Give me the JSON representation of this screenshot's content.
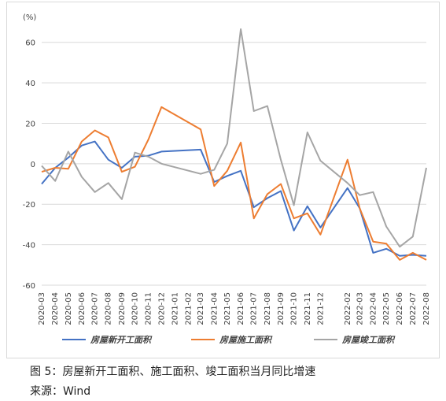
{
  "caption": {
    "figure_title": "图 5：房屋新开工面积、施工面积、竣工面积当月同比增速",
    "source": "来源：Wind"
  },
  "colors": {
    "new_starts": "#4472c4",
    "under_construction": "#ed7d31",
    "completed": "#a5a5a5",
    "grid": "#d9d9d9"
  },
  "chart_data": {
    "type": "line",
    "unit_label": "(%)",
    "ylim": [
      -60,
      70
    ],
    "yticks": [
      -60,
      -40,
      -20,
      0,
      20,
      40,
      60
    ],
    "grid": true,
    "legend_position": "bottom",
    "categories": [
      "2020-03",
      "2020-04",
      "2020-05",
      "2020-06",
      "2020-07",
      "2020-08",
      "2020-09",
      "2020-10",
      "2020-11",
      "2020-12",
      "2021-03",
      "2021-04",
      "2021-05",
      "2021-06",
      "2021-07",
      "2021-08",
      "2021-09",
      "2021-10",
      "2021-11",
      "2021-12",
      "2022-02",
      "2022-03",
      "2022-04",
      "2022-05",
      "2022-06",
      "2022-07",
      "2022-08"
    ],
    "x_dates": [
      "2020-03-01",
      "2020-04-01",
      "2020-05-01",
      "2020-06-01",
      "2020-07-01",
      "2020-08-01",
      "2020-09-01",
      "2020-10-01",
      "2020-11-01",
      "2020-12-01",
      "2021-03-01",
      "2021-04-01",
      "2021-05-01",
      "2021-06-01",
      "2021-07-01",
      "2021-08-01",
      "2021-09-01",
      "2021-10-01",
      "2021-11-01",
      "2021-12-01",
      "2022-02-01",
      "2022-03-01",
      "2022-04-01",
      "2022-05-01",
      "2022-06-01",
      "2022-07-01",
      "2022-08-01"
    ],
    "x_tick_labels": [
      "2020-03",
      "2020-04",
      "2020-05",
      "2020-06",
      "2020-07",
      "2020-08",
      "2020-09",
      "2020-10",
      "2020-11",
      "2020-12",
      "2021-01",
      "2021-02",
      "2021-03",
      "2021-04",
      "2021-05",
      "2021-06",
      "2021-07",
      "2021-08",
      "2021-09",
      "2021-10",
      "2021-11",
      "2021-12",
      "2022-02",
      "2022-03",
      "2022-04",
      "2022-05",
      "2022-06",
      "2022-07",
      "2022-08"
    ],
    "x_tick_dates": [
      "2020-03-01",
      "2020-04-01",
      "2020-05-01",
      "2020-06-01",
      "2020-07-01",
      "2020-08-01",
      "2020-09-01",
      "2020-10-01",
      "2020-11-01",
      "2020-12-01",
      "2021-01-01",
      "2021-02-01",
      "2021-03-01",
      "2021-04-01",
      "2021-05-01",
      "2021-06-01",
      "2021-07-01",
      "2021-08-01",
      "2021-09-01",
      "2021-10-01",
      "2021-11-01",
      "2021-12-01",
      "2022-02-01",
      "2022-03-01",
      "2022-04-01",
      "2022-05-01",
      "2022-06-01",
      "2022-07-01",
      "2022-08-01"
    ],
    "series": [
      {
        "name": "房屋新开工面积",
        "color_key": "new_starts",
        "values": [
          -10,
          -2,
          3,
          9,
          11,
          2,
          -2,
          3.5,
          4,
          6,
          7,
          -9,
          -6,
          -3.5,
          -21.5,
          -17,
          -13.5,
          -33,
          -21,
          -31.5,
          -12,
          -22,
          -44,
          -42,
          -45.5,
          -45,
          -45.5
        ]
      },
      {
        "name": "房屋施工面积",
        "color_key": "under_construction",
        "values": [
          -4,
          -2,
          -2.5,
          11,
          16.5,
          13,
          -4,
          -1.5,
          12,
          28,
          17,
          -11,
          -3.5,
          10.5,
          -27,
          -15,
          -10,
          -27,
          -24.5,
          -35,
          2,
          -22,
          -38.5,
          -39.5,
          -47.5,
          -44,
          -47.5
        ]
      },
      {
        "name": "房屋竣工面积",
        "color_key": "completed",
        "values": [
          -1,
          -8.5,
          6,
          -6.5,
          -14,
          -9.5,
          -17.5,
          5.5,
          3.5,
          0,
          -5,
          -3,
          10,
          66.5,
          26,
          28.5,
          2,
          -20.5,
          15.5,
          1.5,
          -9.5,
          -15.5,
          -14,
          -31,
          -41,
          -36,
          -2
        ]
      }
    ]
  }
}
